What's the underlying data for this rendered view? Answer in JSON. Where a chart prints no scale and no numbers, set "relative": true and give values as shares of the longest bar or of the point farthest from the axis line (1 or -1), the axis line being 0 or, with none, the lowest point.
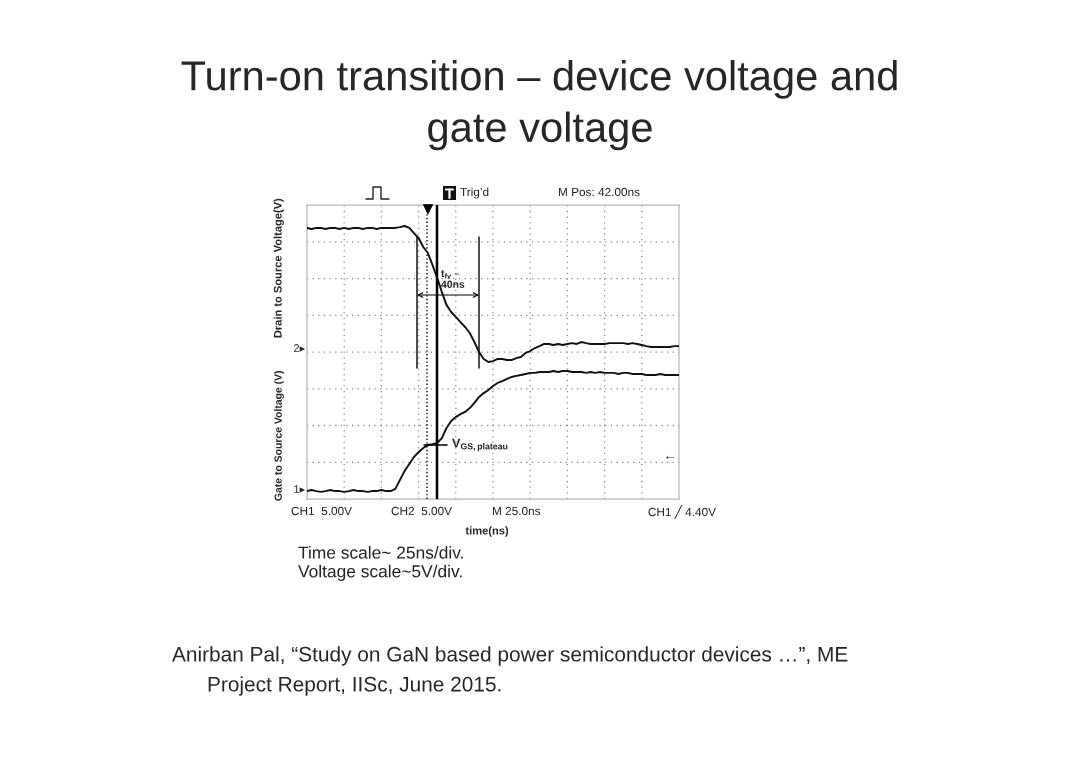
{
  "chart_data": {
    "type": "line",
    "title": "Turn-on transition – device voltage and\ngate voltage",
    "xlabel": "time(ns)",
    "ylabel": "Drain to Source Voltage(V)",
    "relative": true,
    "grid": true,
    "categories": [
      null,
      null,
      null,
      null,
      null,
      null,
      null,
      null,
      null,
      null,
      null,
      null,
      null,
      null,
      null,
      null,
      null,
      null,
      null,
      null,
      null,
      null,
      null,
      null,
      null,
      null,
      null,
      null,
      null,
      null,
      null,
      null,
      null,
      null,
      null,
      null,
      null,
      null,
      null,
      null,
      null,
      null,
      null,
      null,
      null,
      null,
      null,
      null,
      null,
      null,
      null,
      null,
      null,
      null,
      null,
      null,
      null,
      null,
      null,
      null,
      null,
      null,
      null,
      null,
      null,
      null,
      null,
      null,
      null,
      null,
      null,
      null,
      null,
      null,
      null,
      null,
      null,
      null,
      null,
      null,
      null
    ],
    "series": [
      {
        "color": "#111111",
        "values": [
          0.993,
          0.989,
          0.993,
          0.993,
          0.989,
          0.993,
          0.993,
          0.989,
          0.993,
          0.989,
          0.993,
          0.993,
          0.989,
          0.993,
          0.993,
          0.989,
          0.993,
          0.993,
          0.993,
          0.993,
          0.996,
          1.0,
          0.993,
          0.974,
          0.956,
          0.923,
          0.901,
          0.857,
          0.81,
          0.758,
          0.711,
          0.685,
          0.667,
          0.648,
          0.63,
          0.608,
          0.575,
          0.538,
          0.513,
          0.502,
          0.505,
          0.513,
          0.513,
          0.509,
          0.509,
          0.516,
          0.52,
          0.535,
          0.542,
          0.553,
          0.56,
          0.568,
          0.568,
          0.564,
          0.568,
          0.564,
          0.568,
          0.571,
          0.568,
          0.575,
          0.571,
          0.568,
          0.568,
          0.568,
          0.568,
          0.571,
          0.571,
          0.571,
          0.571,
          0.568,
          0.571,
          0.568,
          0.564,
          0.56,
          0.557,
          0.557,
          0.557,
          0.557,
          0.557,
          0.56,
          0.56
        ]
      },
      {
        "color": "#111111",
        "values": [
          0.029,
          0.033,
          0.029,
          0.026,
          0.029,
          0.033,
          0.029,
          0.029,
          0.026,
          0.029,
          0.033,
          0.029,
          0.029,
          0.026,
          0.029,
          0.029,
          0.033,
          0.029,
          0.029,
          0.037,
          0.07,
          0.103,
          0.128,
          0.154,
          0.172,
          0.187,
          0.198,
          0.201,
          0.205,
          0.223,
          0.26,
          0.286,
          0.3,
          0.311,
          0.319,
          0.333,
          0.352,
          0.374,
          0.388,
          0.399,
          0.414,
          0.425,
          0.432,
          0.44,
          0.447,
          0.451,
          0.454,
          0.458,
          0.462,
          0.462,
          0.465,
          0.465,
          0.465,
          0.469,
          0.465,
          0.469,
          0.469,
          0.465,
          0.465,
          0.465,
          0.462,
          0.465,
          0.462,
          0.465,
          0.462,
          0.462,
          0.462,
          0.458,
          0.462,
          0.462,
          0.458,
          0.458,
          0.458,
          0.454,
          0.454,
          0.454,
          0.458,
          0.454,
          0.454,
          0.454,
          0.454
        ]
      }
    ],
    "annotations": [
      "Trig’d",
      "M Pos: 42.00ns",
      "CH1  5.00V",
      "CH2  5.00V",
      "M 25.0ns",
      "CH1 ╱ 4.40V",
      "Gate to Source Voltage (V)",
      "2▸",
      "1▸",
      "t$_{fv}$ –\n40ns",
      "V$_{GS,plateau}$",
      "←",
      "Time scale~ 25ns/div.\nVoltage scale~5V/div.",
      "Anirban Pal, “Study on GaN based power semiconductor devices …”, ME\nProject Report, IISc, June 2015."
    ]
  }
}
